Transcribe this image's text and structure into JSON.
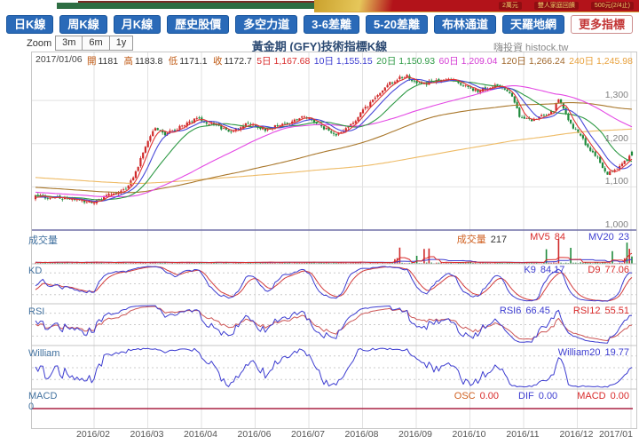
{
  "banner": {
    "ad_items": [
      "2萬元",
      "雙人家庭回饋",
      "500元(2/4止)"
    ]
  },
  "tabs": [
    {
      "name": "tab-daily-k",
      "label": "日K線",
      "variant": "blue"
    },
    {
      "name": "tab-weekly-k",
      "label": "周K線",
      "variant": "blue"
    },
    {
      "name": "tab-monthly-k",
      "label": "月K線",
      "variant": "blue"
    },
    {
      "name": "tab-history-price",
      "label": "歷史股價",
      "variant": "blue"
    },
    {
      "name": "tab-long-short-power",
      "label": "多空力道",
      "variant": "blue"
    },
    {
      "name": "tab-3-6-bias",
      "label": "3-6差離",
      "variant": "blue"
    },
    {
      "name": "tab-5-20-bias",
      "label": "5-20差離",
      "variant": "blue"
    },
    {
      "name": "tab-bollinger-band",
      "label": "布林通道",
      "variant": "blue"
    },
    {
      "name": "tab-sky-net",
      "label": "天羅地網",
      "variant": "blue"
    },
    {
      "name": "tab-more-indicators",
      "label": "更多指標",
      "variant": "outline"
    }
  ],
  "toolbar": {
    "zoom_label": "Zoom",
    "ranges": [
      "3m",
      "6m",
      "1y"
    ],
    "title": "黃金期 (GFY)技術指標K線",
    "credit": "嗨投資 histock.tw"
  },
  "info": {
    "date": "2017/01/06",
    "date_color": "#444444",
    "ohlc": [
      {
        "label": "開",
        "value": "1181"
      },
      {
        "label": "高",
        "value": "1183.8"
      },
      {
        "label": "低",
        "value": "1171.1"
      },
      {
        "label": "收",
        "value": "1172.7"
      }
    ],
    "ohlc_label_color": "#c05a14",
    "ohlc_value_color": "#333333",
    "mas": [
      {
        "label": "5日",
        "value": "1,167.68",
        "color": "#d92b2b"
      },
      {
        "label": "10日",
        "value": "1,155.15",
        "color": "#3c3cd0"
      },
      {
        "label": "20日",
        "value": "1,150.93",
        "color": "#2f9a46"
      },
      {
        "label": "60日",
        "value": "1,209.04",
        "color": "#d43cd4"
      },
      {
        "label": "120日",
        "value": "1,266.24",
        "color": "#a0672b"
      },
      {
        "label": "240日",
        "value": "1,245.98",
        "color": "#e8a13c"
      }
    ]
  },
  "axis": {
    "price_labels": [
      "1,300",
      "1,200",
      "1,100",
      "1,000"
    ],
    "months": [
      "2016/02",
      "2016/03",
      "2016/04",
      "2016/06",
      "2016/07",
      "2016/08",
      "2016/09",
      "2016/10",
      "2016/11",
      "2016/12",
      "2017/01"
    ]
  },
  "panes": {
    "volume": {
      "name": "成交量",
      "stats": [
        {
          "label": "成交量",
          "value": "217",
          "lc": "#d06020",
          "vc": "#333333"
        },
        {
          "label": "MV5",
          "value": "84",
          "lc": "#d92b2b",
          "vc": "#d92b2b"
        },
        {
          "label": "MV20",
          "value": "23",
          "lc": "#3c3cd0",
          "vc": "#3c3cd0"
        }
      ]
    },
    "kd": {
      "name": "KD",
      "stats": [
        {
          "label": "K9",
          "value": "84.17",
          "lc": "#3c3cd0",
          "vc": "#3c3cd0"
        },
        {
          "label": "D9",
          "value": "77.06",
          "lc": "#d92b2b",
          "vc": "#d92b2b"
        }
      ]
    },
    "rsi": {
      "name": "RSI",
      "stats": [
        {
          "label": "RSI6",
          "value": "66.45",
          "lc": "#3c3cd0",
          "vc": "#3c3cd0"
        },
        {
          "label": "RSI12",
          "value": "55.51",
          "lc": "#d92b2b",
          "vc": "#d92b2b"
        }
      ]
    },
    "william": {
      "name": "William",
      "stats": [
        {
          "label": "William20",
          "value": "19.77",
          "lc": "#3c3cd0",
          "vc": "#3c3cd0"
        }
      ]
    },
    "macd": {
      "name": "MACD",
      "zero_label": "0",
      "stats": [
        {
          "label": "OSC",
          "value": "0.00",
          "lc": "#d06020",
          "vc": "#d92b2b"
        },
        {
          "label": "DIF",
          "value": "0.00",
          "lc": "#3c3cd0",
          "vc": "#3c3cd0"
        },
        {
          "label": "MACD",
          "value": "0.00",
          "lc": "#d92b2b",
          "vc": "#d92b2b"
        }
      ]
    }
  },
  "chart_data": {
    "type": "candlestick",
    "symbol": "黃金期 (GFY)",
    "last": {
      "date": "2017/01/06",
      "open": 1181,
      "high": 1183.8,
      "low": 1171.1,
      "close": 1172.7
    },
    "moving_averages": {
      "ma5": 1167.68,
      "ma10": 1155.15,
      "ma20": 1150.93,
      "ma60": 1209.04,
      "ma120": 1266.24,
      "ma240": 1245.98
    },
    "indicators": {
      "volume": 217,
      "mv5": 84,
      "mv20": 23,
      "k9": 84.17,
      "d9": 77.06,
      "rsi6": 66.45,
      "rsi12": 55.51,
      "william20": 19.77,
      "osc": 0,
      "dif": 0,
      "macd": 0
    },
    "price_range": [
      1000,
      1370
    ],
    "volume_axis_max": 1000,
    "colors": {
      "up": "#cf2a2a",
      "down": "#1f8a3c",
      "ma5": "#e03232",
      "ma10": "#4848d8",
      "ma20": "#2f9a46",
      "ma60": "#e448e4",
      "ma120": "#a9772b",
      "ma240": "#eebb66",
      "k": "#3c3cd0",
      "d": "#d23a3a",
      "rsi6": "#3c3cd0",
      "rsi12": "#cc5555",
      "william": "#3c3cd0",
      "macd_zero": "#aa2244",
      "mv5": "#d92b2b",
      "mv20": "#3c3cd0"
    },
    "anchors": [
      [
        0.0,
        1078
      ],
      [
        0.06,
        1072
      ],
      [
        0.095,
        1062
      ],
      [
        0.13,
        1085
      ],
      [
        0.15,
        1092
      ],
      [
        0.165,
        1125
      ],
      [
        0.185,
        1195
      ],
      [
        0.2,
        1238
      ],
      [
        0.215,
        1222
      ],
      [
        0.24,
        1236
      ],
      [
        0.27,
        1258
      ],
      [
        0.3,
        1242
      ],
      [
        0.33,
        1228
      ],
      [
        0.355,
        1250
      ],
      [
        0.385,
        1232
      ],
      [
        0.42,
        1247
      ],
      [
        0.45,
        1262
      ],
      [
        0.48,
        1240
      ],
      [
        0.505,
        1218
      ],
      [
        0.53,
        1245
      ],
      [
        0.555,
        1285
      ],
      [
        0.575,
        1315
      ],
      [
        0.595,
        1340
      ],
      [
        0.62,
        1358
      ],
      [
        0.645,
        1337
      ],
      [
        0.665,
        1342
      ],
      [
        0.69,
        1351
      ],
      [
        0.715,
        1338
      ],
      [
        0.74,
        1322
      ],
      [
        0.76,
        1330
      ],
      [
        0.775,
        1335
      ],
      [
        0.79,
        1326
      ],
      [
        0.8,
        1310
      ],
      [
        0.812,
        1262
      ],
      [
        0.835,
        1252
      ],
      [
        0.855,
        1268
      ],
      [
        0.868,
        1275
      ],
      [
        0.878,
        1305
      ],
      [
        0.885,
        1280
      ],
      [
        0.9,
        1240
      ],
      [
        0.915,
        1215
      ],
      [
        0.93,
        1185
      ],
      [
        0.945,
        1160
      ],
      [
        0.958,
        1132
      ],
      [
        0.97,
        1135
      ],
      [
        0.982,
        1152
      ],
      [
        0.995,
        1168
      ],
      [
        1.0,
        1172.7
      ]
    ],
    "volume_spikes": [
      [
        236,
        380
      ],
      [
        242,
        650
      ],
      [
        244,
        217
      ]
    ]
  }
}
